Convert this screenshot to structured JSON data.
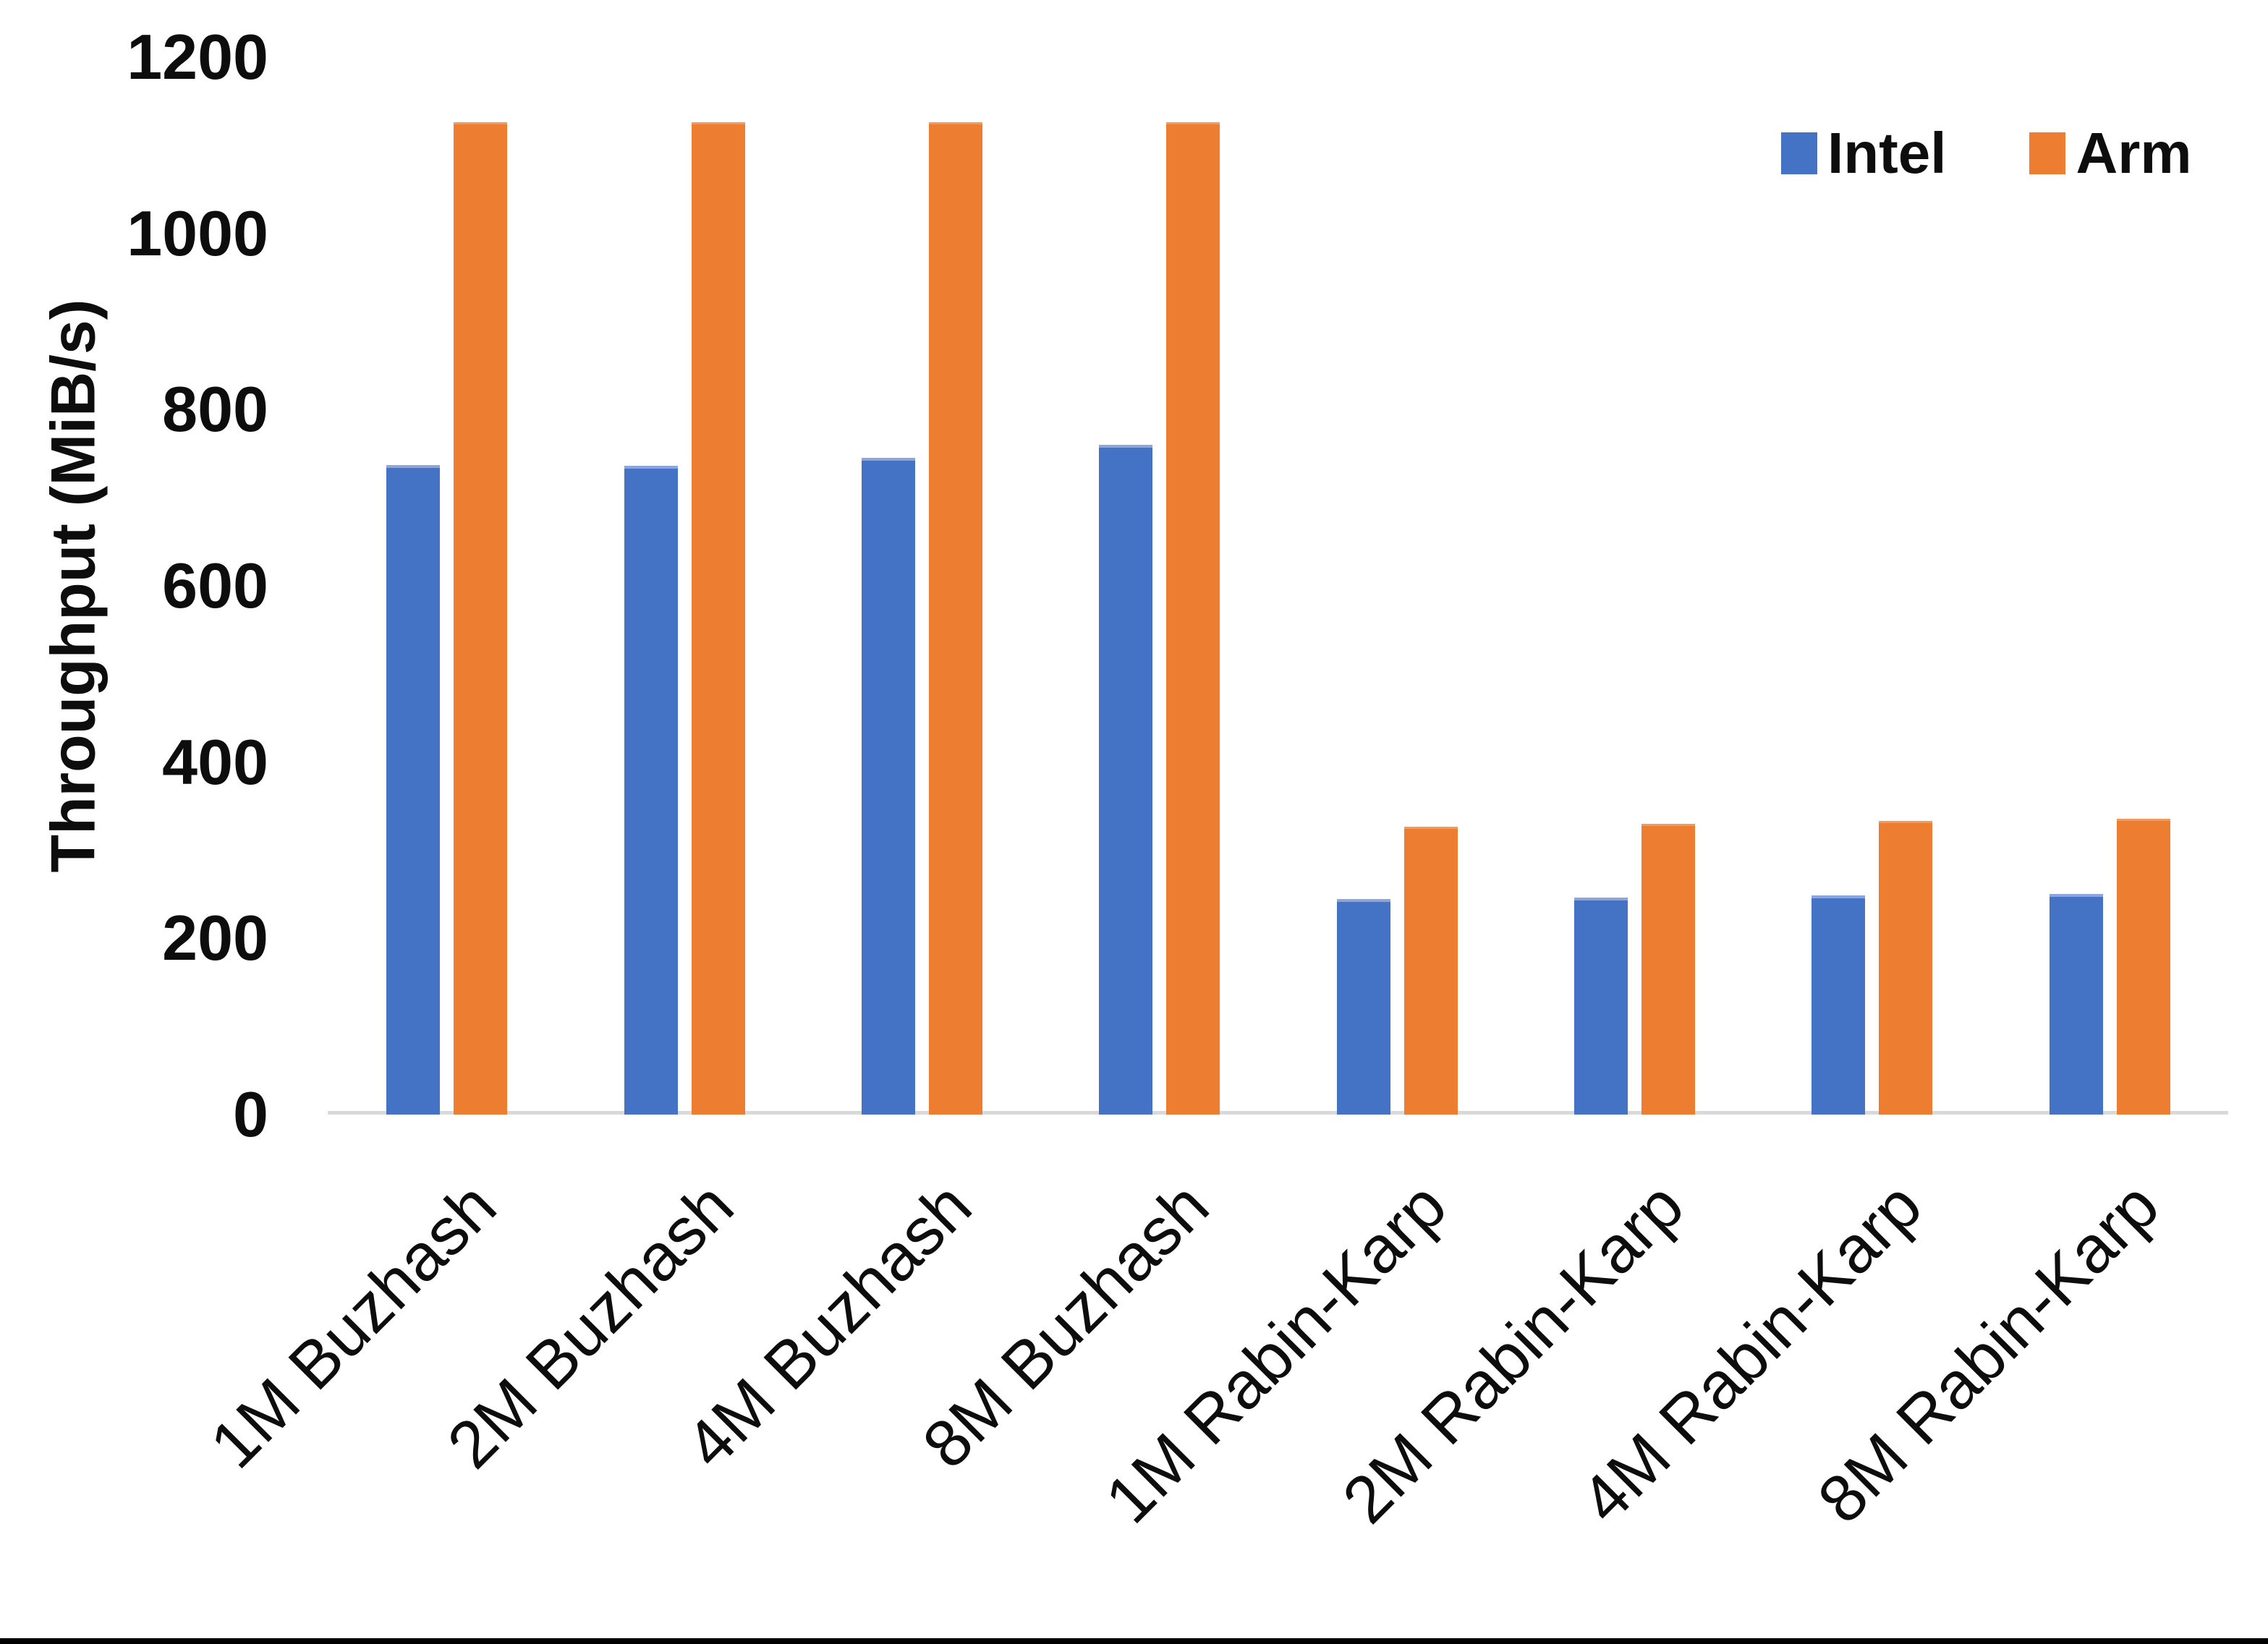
{
  "page": {
    "background": "#FFFFFF",
    "bottom_bar_color": "#000000"
  },
  "chart_data": {
    "type": "bar",
    "title": "",
    "xlabel": "",
    "ylabel": "Throughput (MiB/s)",
    "ylim": [
      0,
      1200
    ],
    "yticks": [
      0,
      200,
      400,
      600,
      800,
      1000,
      1200
    ],
    "grid": false,
    "legend_position": "top-right",
    "x_tick_rotation_deg": 45,
    "axis_line_color": "#D9D9D9",
    "categories": [
      "1M Buzhash",
      "2M Buzhash",
      "4M Buzhash",
      "8M Buzhash",
      "1M Rabin-Karp",
      "2M Rabin-Karp",
      "4M Rabin-Karp",
      "8M Rabin-Karp"
    ],
    "series": [
      {
        "name": "Intel",
        "color": "#4472C4",
        "edge_color": "#8CA5DC",
        "values": [
          737,
          736,
          745,
          760,
          245,
          246,
          249,
          250
        ]
      },
      {
        "name": "Arm",
        "color": "#ED7D31",
        "edge_color": "#F19A5F",
        "values": [
          1126,
          1126,
          1126,
          1126,
          327,
          330,
          333,
          336
        ]
      }
    ]
  }
}
